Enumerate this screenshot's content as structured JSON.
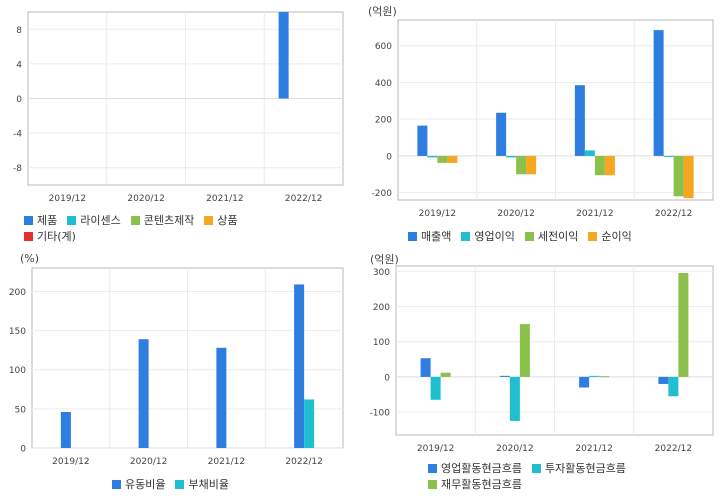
{
  "colors": {
    "blue": "#2e7de1",
    "cyan": "#1fbfcf",
    "green": "#8cc04c",
    "orange": "#f5a623",
    "red": "#e03030"
  },
  "chart_data": [
    {
      "type": "bar",
      "unit": "",
      "categories": [
        "2019/12",
        "2020/12",
        "2021/12",
        "2022/12"
      ],
      "ylim": [
        -10,
        10
      ],
      "yticks": [
        -8,
        -4,
        0,
        4,
        8
      ],
      "grid": true,
      "series": [
        {
          "name": "제품",
          "color": "#2e7de1",
          "values": [
            0,
            0,
            0,
            10
          ]
        },
        {
          "name": "라이센스",
          "color": "#1fbfcf",
          "values": [
            0,
            0,
            0,
            0
          ]
        },
        {
          "name": "콘텐츠제작",
          "color": "#8cc04c",
          "values": [
            0,
            0,
            0,
            0
          ]
        },
        {
          "name": "상품",
          "color": "#f5a623",
          "values": [
            0,
            0,
            0,
            0
          ]
        },
        {
          "name": "기타(계)",
          "color": "#e03030",
          "values": [
            0,
            0,
            0,
            0
          ]
        }
      ],
      "legend_rows": [
        [
          0,
          1,
          2,
          3
        ],
        [
          4
        ]
      ]
    },
    {
      "type": "bar",
      "unit": "(억원)",
      "categories": [
        "2019/12",
        "2020/12",
        "2021/12",
        "2022/12"
      ],
      "ylim": [
        -240,
        740
      ],
      "yticks": [
        -200,
        0,
        200,
        400,
        600
      ],
      "grid": true,
      "series": [
        {
          "name": "매출액",
          "color": "#2e7de1",
          "values": [
            165,
            235,
            385,
            685
          ]
        },
        {
          "name": "영업이익",
          "color": "#1fbfcf",
          "values": [
            -8,
            -8,
            30,
            -5
          ]
        },
        {
          "name": "세전이익",
          "color": "#8cc04c",
          "values": [
            -38,
            -100,
            -105,
            -220
          ]
        },
        {
          "name": "순이익",
          "color": "#f5a623",
          "values": [
            -38,
            -100,
            -105,
            -230
          ]
        }
      ],
      "legend_rows": [
        [
          0,
          1,
          2,
          3
        ]
      ]
    },
    {
      "type": "bar",
      "unit": "(%)",
      "categories": [
        "2019/12",
        "2020/12",
        "2021/12",
        "2022/12"
      ],
      "ylim": [
        0,
        230
      ],
      "yticks": [
        0,
        50,
        100,
        150,
        200
      ],
      "grid": true,
      "series": [
        {
          "name": "유동비율",
          "color": "#2e7de1",
          "values": [
            46,
            139,
            128,
            209
          ]
        },
        {
          "name": "부채비율",
          "color": "#1fbfcf",
          "values": [
            0,
            0,
            0,
            62
          ]
        }
      ],
      "legend_rows": [
        [
          0,
          1
        ]
      ]
    },
    {
      "type": "bar",
      "unit": "(억원)",
      "categories": [
        "2019/12",
        "2020/12",
        "2021/12",
        "2022/12"
      ],
      "ylim": [
        -165,
        315
      ],
      "yticks": [
        -100,
        0,
        100,
        200,
        300
      ],
      "grid": true,
      "series": [
        {
          "name": "영업활동현금흐름",
          "color": "#2e7de1",
          "values": [
            53,
            3,
            -30,
            -20
          ]
        },
        {
          "name": "투자활동현금흐름",
          "color": "#1fbfcf",
          "values": [
            -65,
            -125,
            3,
            -55
          ]
        },
        {
          "name": "재무활동현금흐름",
          "color": "#8cc04c",
          "values": [
            12,
            150,
            2,
            295
          ]
        }
      ],
      "legend_rows": [
        [
          0,
          1
        ],
        [
          2
        ]
      ]
    }
  ]
}
